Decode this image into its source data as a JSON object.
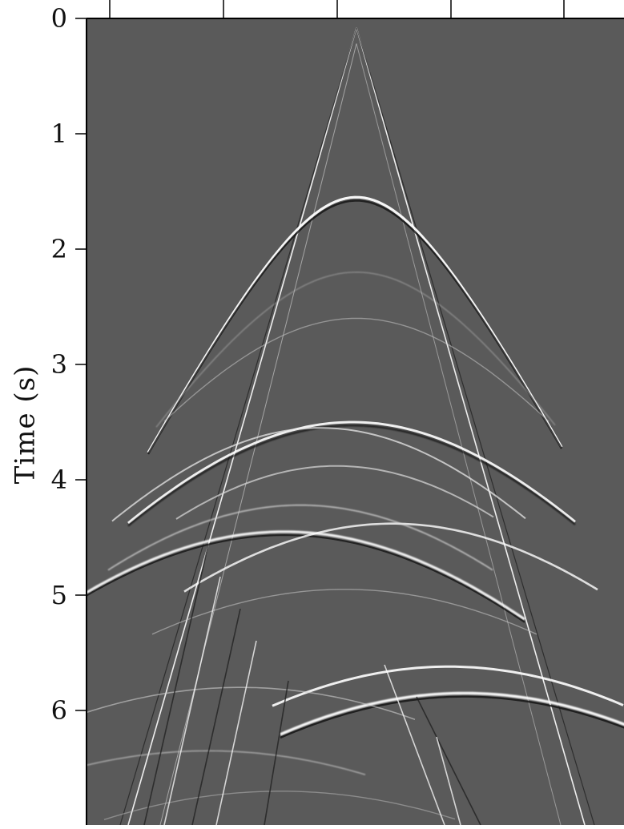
{
  "chart_data": {
    "type": "heatmap",
    "title": "",
    "xlabel": "",
    "ylabel": "Time (s)",
    "y_axis": {
      "direction": "down",
      "ylim": [
        0,
        7.0
      ],
      "ticks": [
        0,
        1,
        2,
        3,
        4,
        5,
        6
      ],
      "tick_labels": [
        "0",
        "1",
        "2",
        "3",
        "4",
        "5",
        "6"
      ]
    },
    "x_axis": {
      "tick_labels": []
    },
    "colormap": "gray",
    "background_color": "#5a5a5a",
    "description_events": [
      {
        "kind": "direct-arrival-apex-time",
        "value": 0.08
      },
      {
        "kind": "hyperbola-apex-time",
        "value": 1.55
      },
      {
        "kind": "hyperbola-apex-time",
        "value": 3.5
      },
      {
        "kind": "hyperbola-apex-time",
        "value": 4.45
      },
      {
        "kind": "hyperbola-apex-time",
        "value": 4.38
      },
      {
        "kind": "hyperbola-apex-time",
        "value": 5.62
      },
      {
        "kind": "hyperbola-apex-time",
        "value": 5.85
      }
    ]
  }
}
